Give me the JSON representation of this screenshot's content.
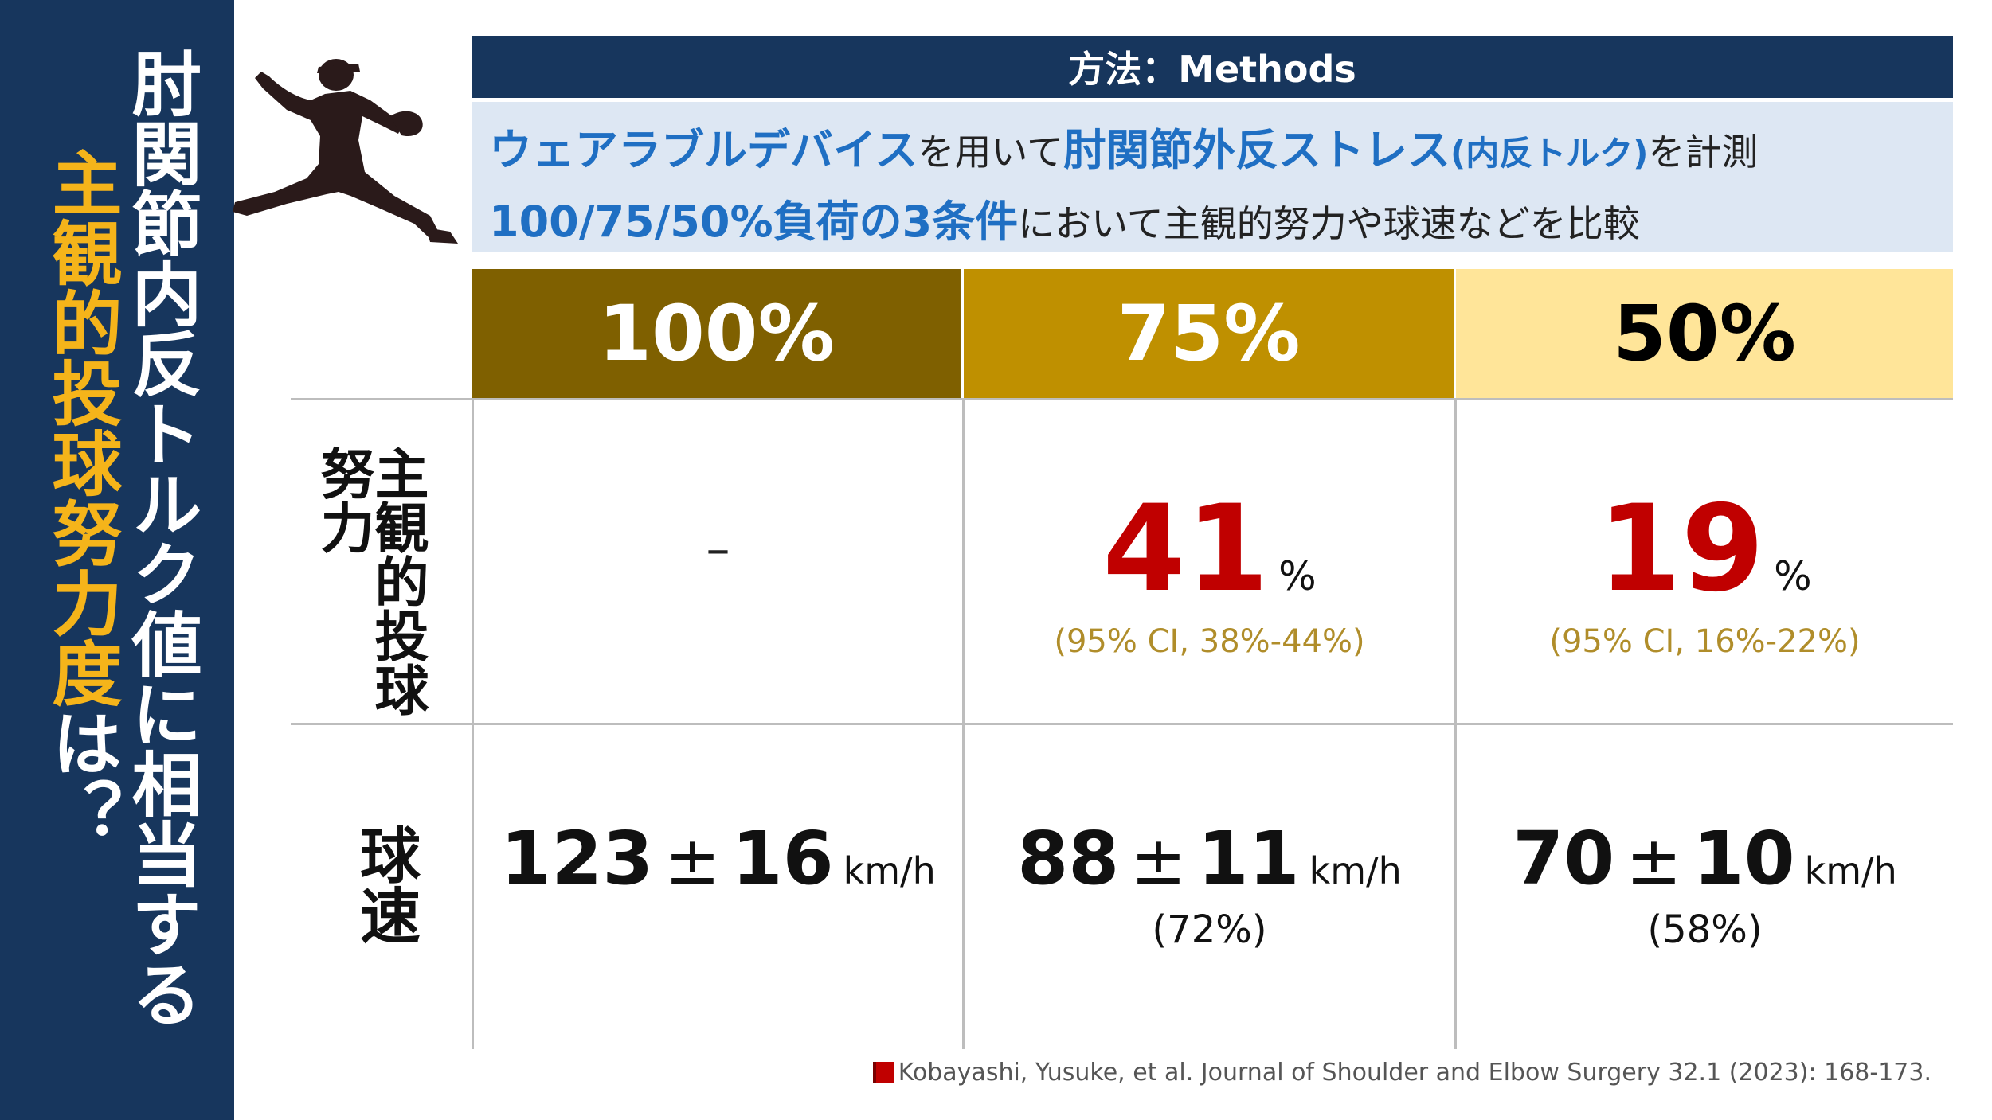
{
  "side_title": {
    "line_white": "肘関節内反トルク値に相当する",
    "line_yellow": "主観的投球努力度",
    "line_yellow_tail": "は？"
  },
  "methods": {
    "header": "方法：Methods",
    "line1": {
      "hl1": "ウェアラブルデバイス",
      "t1": "を用いて",
      "hl2": "肘関節外反ストレス",
      "hl3": "(内反トルク)",
      "t2": "を計測"
    },
    "line2": {
      "hl1": "100/75/50%負荷の3条件",
      "t1": "において主観的努力や球速などを比較"
    }
  },
  "table": {
    "headers": [
      "100%",
      "75%",
      "50%"
    ],
    "row_effort_label": "主観的投球努力",
    "row_speed_label": "球速",
    "effort": {
      "c100": "–",
      "c75_value": "41",
      "c75_unit": "%",
      "c75_ci": "(95% CI, 38%-44%)",
      "c50_value": "19",
      "c50_unit": "%",
      "c50_ci": "(95% CI, 16%-22%)"
    },
    "speed": {
      "c100_mean": "123",
      "c100_sd": "16",
      "c75_mean": "88",
      "c75_sd": "11",
      "c75_rel": "(72%)",
      "c50_mean": "70",
      "c50_sd": "10",
      "c50_rel": "(58%)",
      "pm": "±",
      "unit": "km/h"
    }
  },
  "reference": "Kobayashi, Yusuke, et al. Journal of Shoulder and Elbow Surgery 32.1 (2023): 168-173.",
  "colors": {
    "navy": "#17365d",
    "accent_yellow": "#f5b41a",
    "blue_highlight": "#1f6fc3",
    "red_value": "#c00000",
    "col100": "#7f6000",
    "col75": "#bf9000",
    "col50": "#ffe599"
  },
  "icons": [
    "pitcher-silhouette-icon",
    "book-icon"
  ]
}
